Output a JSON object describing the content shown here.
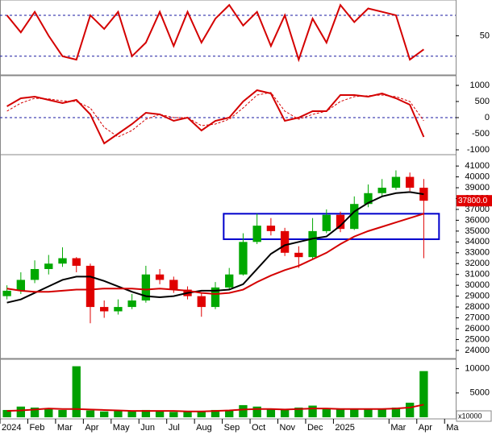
{
  "chart_data": [
    {
      "type": "line",
      "xlim": [
        0,
        16.4
      ],
      "ylim": [
        -5,
        100
      ],
      "yticks": [
        50
      ],
      "reference_lines": [
        20,
        80
      ],
      "x": [
        0.25,
        0.75,
        1.25,
        1.75,
        2.25,
        2.75,
        3.25,
        3.75,
        4.25,
        4.75,
        5.25,
        5.75,
        6.25,
        6.75,
        7.25,
        7.75,
        8.25,
        8.75,
        9.25,
        9.75,
        10.25,
        10.75,
        11.25,
        11.75,
        12.25,
        12.75,
        13.25,
        13.75,
        14.25,
        14.75,
        15.25
      ],
      "series": [
        {
          "color": "#d40000",
          "values": [
            80,
            55,
            85,
            50,
            20,
            15,
            80,
            60,
            85,
            20,
            40,
            85,
            35,
            85,
            40,
            75,
            95,
            65,
            85,
            35,
            80,
            15,
            75,
            40,
            95,
            70,
            90,
            85,
            80,
            15,
            30
          ]
        }
      ]
    },
    {
      "type": "line",
      "xlim": [
        0,
        16.4
      ],
      "ylim": [
        -1100,
        1250
      ],
      "yticks": [
        -1000,
        -500,
        0,
        500,
        1000
      ],
      "reference_lines": [
        0
      ],
      "x": [
        0.25,
        0.75,
        1.25,
        1.75,
        2.25,
        2.75,
        3.25,
        3.75,
        4.25,
        4.75,
        5.25,
        5.75,
        6.25,
        6.75,
        7.25,
        7.75,
        8.25,
        8.75,
        9.25,
        9.75,
        10.25,
        10.75,
        11.25,
        11.75,
        12.25,
        12.75,
        13.25,
        13.75,
        14.25,
        14.75,
        15.25
      ],
      "series": [
        {
          "color": "#d40000",
          "values": [
            350,
            600,
            650,
            550,
            450,
            550,
            100,
            -800,
            -500,
            -200,
            150,
            100,
            -100,
            0,
            -400,
            -100,
            0,
            500,
            850,
            750,
            -100,
            0,
            200,
            200,
            700,
            700,
            650,
            750,
            600,
            400,
            -600
          ]
        },
        {
          "color": "#d40000",
          "dash": true,
          "values": [
            200,
            450,
            600,
            580,
            520,
            500,
            300,
            -300,
            -600,
            -400,
            -50,
            100,
            0,
            0,
            -250,
            -200,
            -50,
            300,
            700,
            780,
            200,
            -50,
            100,
            200,
            500,
            650,
            680,
            700,
            650,
            500,
            -100
          ]
        }
      ]
    },
    {
      "type": "candlestick",
      "xlim": [
        0,
        16.4
      ],
      "ylim": [
        23400,
        41900
      ],
      "yticks": [
        24000,
        25000,
        26000,
        27000,
        28000,
        29000,
        30000,
        31000,
        32000,
        33000,
        34000,
        35000,
        36000,
        37000,
        38000,
        39000,
        40000,
        41000
      ],
      "up_color": "#00a800",
      "down_color": "#e00000",
      "x": [
        0.25,
        0.75,
        1.25,
        1.75,
        2.25,
        2.75,
        3.25,
        3.75,
        4.25,
        4.75,
        5.25,
        5.75,
        6.25,
        6.75,
        7.25,
        7.75,
        8.25,
        8.75,
        9.25,
        9.75,
        10.25,
        10.75,
        11.25,
        11.75,
        12.25,
        12.75,
        13.25,
        13.75,
        14.25,
        14.75,
        15.25
      ],
      "open": [
        29000,
        29500,
        30500,
        31500,
        32000,
        32500,
        31800,
        28000,
        27600,
        28000,
        28600,
        31000,
        30500,
        29600,
        29000,
        28000,
        29800,
        31000,
        34000,
        35500,
        35000,
        33000,
        32600,
        35000,
        36500,
        35200,
        37500,
        38500,
        39000,
        40000,
        39000
      ],
      "high": [
        30000,
        31200,
        32300,
        32800,
        33500,
        32600,
        32000,
        28600,
        28700,
        29200,
        31800,
        31500,
        30800,
        29900,
        29300,
        30300,
        31600,
        34800,
        36600,
        36200,
        35300,
        33600,
        36200,
        37000,
        36800,
        38200,
        39300,
        39800,
        40600,
        40400,
        39800
      ],
      "low": [
        28700,
        29200,
        30200,
        31000,
        31700,
        31200,
        26500,
        27000,
        27300,
        27800,
        28400,
        30100,
        29300,
        28700,
        27100,
        27800,
        29600,
        30900,
        33800,
        34600,
        32700,
        31600,
        32400,
        34800,
        34900,
        35100,
        37200,
        38200,
        38800,
        38700,
        32500
      ],
      "close": [
        29500,
        30500,
        31500,
        32000,
        32500,
        31800,
        28000,
        27600,
        28000,
        28600,
        31000,
        30500,
        29600,
        29000,
        28000,
        29800,
        31000,
        34000,
        35500,
        35000,
        33000,
        32600,
        35000,
        36500,
        35200,
        37500,
        38500,
        39000,
        40000,
        39000,
        37800
      ],
      "series": [
        {
          "color": "#000000",
          "values": [
            28400,
            28700,
            29300,
            29900,
            30500,
            30800,
            30800,
            30400,
            29900,
            29400,
            29000,
            28900,
            29000,
            29300,
            29500,
            29500,
            29600,
            30100,
            31500,
            32900,
            33700,
            34000,
            34300,
            34500,
            35500,
            36800,
            37600,
            38200,
            38500,
            38600,
            38400
          ]
        },
        {
          "color": "#d40000",
          "values": [
            29700,
            29500,
            29400,
            29400,
            29500,
            29600,
            29600,
            29700,
            29700,
            29700,
            29600,
            29700,
            29600,
            29500,
            29300,
            29200,
            29300,
            29600,
            30300,
            30900,
            31400,
            31800,
            32400,
            33000,
            33800,
            34500,
            35000,
            35400,
            35800,
            36200,
            36600
          ]
        }
      ],
      "box": {
        "x": [
          8.05,
          15.8
        ],
        "y": [
          34250,
          36600
        ],
        "color": "#0000cc"
      },
      "last_price": {
        "value": 37800,
        "label": "37800.0"
      }
    },
    {
      "type": "volume",
      "xlim": [
        0,
        16.4
      ],
      "ylim": [
        0,
        11600
      ],
      "yticks": [
        5000,
        10000
      ],
      "unit_label": "x10000",
      "color": "#00a000",
      "x": [
        0.25,
        0.75,
        1.25,
        1.75,
        2.25,
        2.75,
        3.25,
        3.75,
        4.25,
        4.75,
        5.25,
        5.75,
        6.25,
        6.75,
        7.25,
        7.75,
        8.25,
        8.75,
        9.25,
        9.75,
        10.25,
        10.75,
        11.25,
        11.75,
        12.25,
        12.75,
        13.25,
        13.75,
        14.25,
        14.75,
        15.25
      ],
      "values": [
        1500,
        2200,
        2000,
        1800,
        1500,
        10500,
        1400,
        1200,
        1300,
        1200,
        1500,
        1300,
        1100,
        1200,
        1300,
        1500,
        1400,
        2500,
        2200,
        1800,
        1600,
        2000,
        2400,
        1800,
        1600,
        1800,
        1700,
        1600,
        2000,
        3000,
        9500
      ],
      "series": [
        {
          "color": "#d40000",
          "values": [
            1300,
            1400,
            1600,
            1800,
            1700,
            1700,
            1600,
            1500,
            1400,
            1300,
            1300,
            1300,
            1300,
            1200,
            1200,
            1300,
            1400,
            1600,
            1700,
            1700,
            1600,
            1700,
            1800,
            1800,
            1700,
            1700,
            1700,
            1700,
            1800,
            2000,
            2600
          ]
        }
      ],
      "xticks": [
        {
          "value": 0,
          "label": "2024"
        },
        {
          "value": 1,
          "label": "Feb"
        },
        {
          "value": 2,
          "label": "Mar"
        },
        {
          "value": 3,
          "label": "Apr"
        },
        {
          "value": 4,
          "label": "May"
        },
        {
          "value": 5,
          "label": "Jun"
        },
        {
          "value": 6,
          "label": "Jul"
        },
        {
          "value": 7,
          "label": "Aug"
        },
        {
          "value": 8,
          "label": "Sep"
        },
        {
          "value": 9,
          "label": "Oct"
        },
        {
          "value": 10,
          "label": "Nov"
        },
        {
          "value": 11,
          "label": "Dec"
        },
        {
          "value": 12,
          "label": "2025"
        },
        {
          "value": 14,
          "label": "Mar"
        },
        {
          "value": 15,
          "label": "Apr"
        },
        {
          "value": 16,
          "label": "Ma"
        }
      ]
    }
  ]
}
